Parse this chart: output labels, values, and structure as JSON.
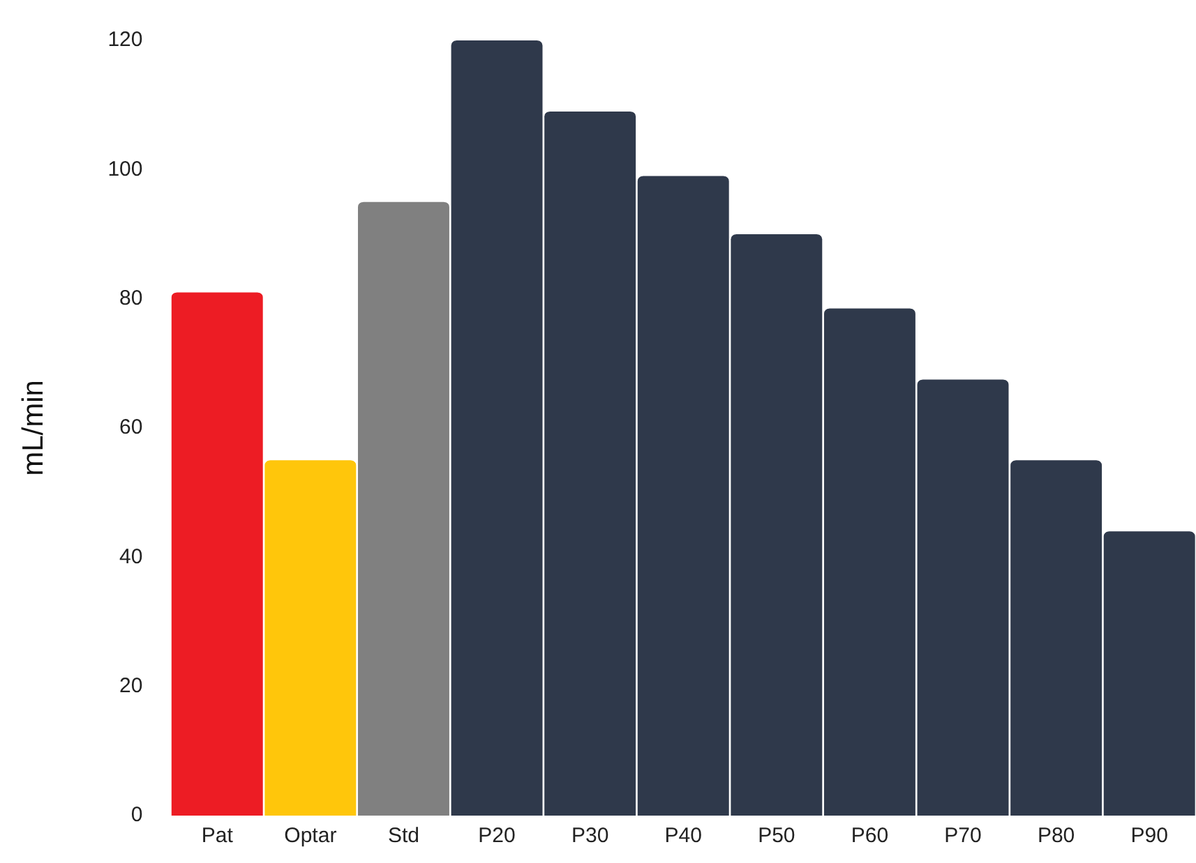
{
  "chart_data": {
    "type": "bar",
    "ylabel": "mL/min",
    "categories": [
      "Pat",
      "Optar",
      "Std",
      "P20",
      "P30",
      "P40",
      "P50",
      "P60",
      "P70",
      "P80",
      "P90"
    ],
    "values": [
      81,
      55,
      95,
      120,
      109,
      99,
      90,
      78.5,
      67.5,
      55,
      44
    ],
    "colors": [
      "#ed1c24",
      "#ffc60b",
      "#808080",
      "#2f394b",
      "#2f394b",
      "#2f394b",
      "#2f394b",
      "#2f394b",
      "#2f394b",
      "#2f394b",
      "#2f394b"
    ],
    "ylim": [
      0,
      120
    ],
    "yticks": [
      0,
      20,
      40,
      60,
      80,
      100,
      120
    ],
    "grid": false,
    "legend": false
  }
}
